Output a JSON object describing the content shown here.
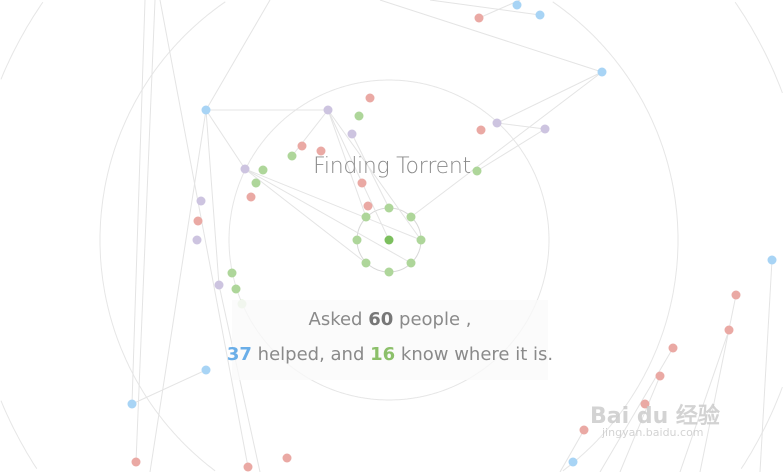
{
  "title": "Finding Torrent",
  "stats": {
    "asked_prefix": "Asked",
    "asked_count": "60",
    "asked_suffix": "people ,",
    "helped_count": "37",
    "helped_text": "helped, and",
    "know_count": "16",
    "know_text": "know where it is."
  },
  "watermark": {
    "logo": "Bai du 经验",
    "url": "jingyan.baidu.com"
  },
  "colors": {
    "helped": "#6aaee8",
    "know": "#8cc06a",
    "blue_node": "#a8d4f5",
    "red_node": "#eaa9a4",
    "purple_node": "#cdc4e0",
    "green_node": "#aed69a",
    "center_node": "#7cbf5e",
    "edge": "#e4e4e4"
  }
}
